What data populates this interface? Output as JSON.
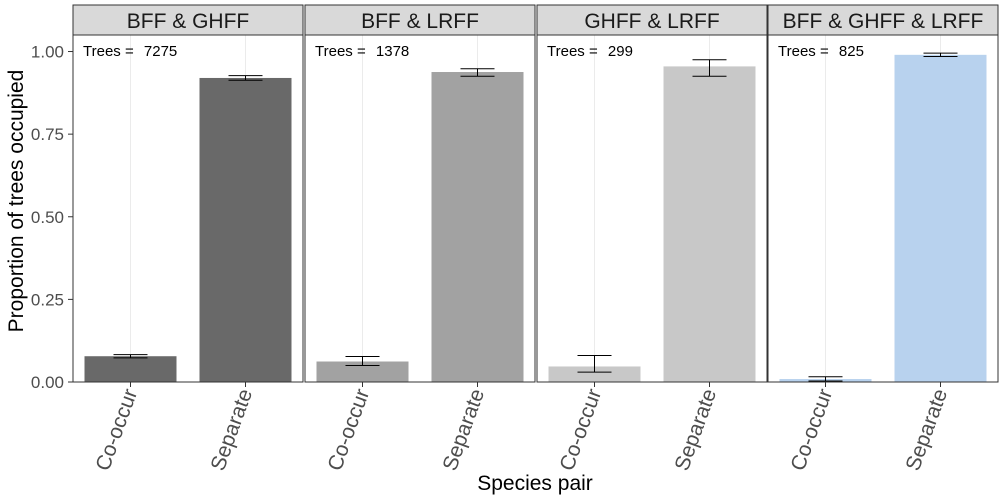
{
  "chart_data": {
    "type": "bar",
    "xlabel": "Species pair",
    "ylabel": "Proportion of trees occupied",
    "ylim": [
      0,
      1.05
    ],
    "yticks": [
      0,
      0.25,
      0.5,
      0.75,
      1.0
    ],
    "ytick_labels": [
      "0.00",
      "0.25",
      "0.50",
      "0.75",
      "1.00"
    ],
    "categories": [
      "Co-occur",
      "Separate"
    ],
    "grid": "vertical-only",
    "legend": "none",
    "panels": [
      {
        "title": "BFF & GHFF",
        "annotation_label": "Trees = ",
        "annotation_value": "7275",
        "color": "#696969",
        "values": [
          0.078,
          0.92
        ],
        "errors": [
          [
            0.073,
            0.083
          ],
          [
            0.913,
            0.927
          ]
        ]
      },
      {
        "title": "BFF & LRFF",
        "annotation_label": "Trees = ",
        "annotation_value": "1378",
        "color": "#a2a2a2",
        "values": [
          0.062,
          0.938
        ],
        "errors": [
          [
            0.05,
            0.077
          ],
          [
            0.925,
            0.948
          ]
        ]
      },
      {
        "title": "GHFF & LRFF",
        "annotation_label": "Trees = ",
        "annotation_value": "299",
        "color": "#c8c8c8",
        "values": [
          0.047,
          0.955
        ],
        "errors": [
          [
            0.03,
            0.08
          ],
          [
            0.925,
            0.975
          ]
        ]
      },
      {
        "title": "BFF & GHFF & LRFF",
        "annotation_label": "Trees = ",
        "annotation_value": "825",
        "color": "#b8d2ee",
        "values": [
          0.009,
          0.99
        ],
        "errors": [
          [
            0.003,
            0.016
          ],
          [
            0.985,
            0.995
          ]
        ]
      }
    ]
  }
}
